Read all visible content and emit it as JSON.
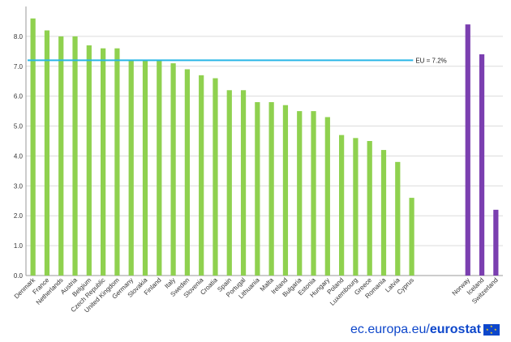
{
  "chart_data": {
    "type": "bar",
    "ylim": [
      0,
      9
    ],
    "yticks": [
      "0.0",
      "1.0",
      "2.0",
      "3.0",
      "4.0",
      "5.0",
      "6.0",
      "7.0",
      "8.0"
    ],
    "grid": true,
    "series": [
      {
        "color": "#8fd14f",
        "categories": [
          "Denmark",
          "France",
          "Netherlands",
          "Austria",
          "Belgium",
          "Czech Republic",
          "United Kingdom",
          "Germany",
          "Slovakia",
          "Finland",
          "Italy",
          "Sweden",
          "Slovenia",
          "Croatia",
          "Spain",
          "Portugal",
          "Lithuania",
          "Malta",
          "Ireland",
          "Bulgaria",
          "Estonia",
          "Hungary",
          "Poland",
          "Luxembourg",
          "Greece",
          "Romania",
          "Latvia",
          "Cyprus"
        ],
        "values": [
          8.6,
          8.2,
          8.0,
          8.0,
          7.7,
          7.6,
          7.6,
          7.2,
          7.2,
          7.2,
          7.1,
          6.9,
          6.7,
          6.6,
          6.2,
          6.2,
          5.8,
          5.8,
          5.7,
          5.5,
          5.5,
          5.3,
          4.7,
          4.6,
          4.5,
          4.2,
          3.8,
          2.6
        ]
      },
      {
        "color": "#7b3fb0",
        "categories": [
          "Norway",
          "Iceland",
          "Switzerland"
        ],
        "values": [
          8.4,
          7.4,
          2.2
        ]
      }
    ],
    "reference_line": {
      "value": 7.2,
      "label": "EU = 7.2%",
      "color": "#29b6e6"
    }
  },
  "footer": {
    "site": "ec.europa.eu/",
    "brand": "eurostat"
  }
}
